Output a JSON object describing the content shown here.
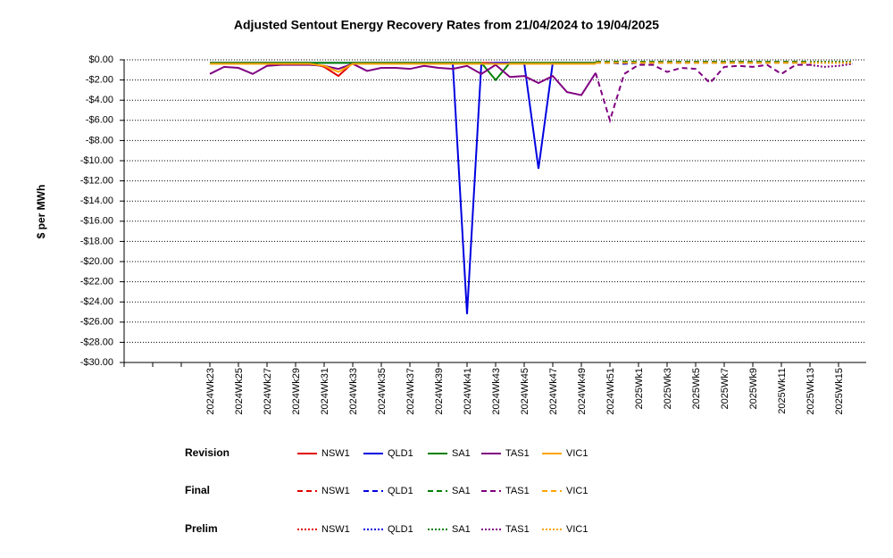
{
  "chart_data": {
    "type": "line",
    "title": "Adjusted Sentout Energy Recovery Rates from 21/04/2024 to 19/04/2025",
    "y_label": "$ per MWh",
    "categories": [
      null,
      null,
      null,
      null,
      null,
      null,
      "2024Wk23",
      null,
      "2024Wk25",
      null,
      "2024Wk27",
      null,
      "2024Wk29",
      null,
      "2024Wk31",
      null,
      "2024Wk33",
      null,
      "2024Wk35",
      null,
      "2024Wk37",
      null,
      "2024Wk39",
      null,
      "2024Wk41",
      null,
      "2024Wk43",
      null,
      "2024Wk45",
      null,
      "2024Wk47",
      null,
      "2024Wk49",
      null,
      "2024Wk51",
      null,
      "2025Wk1",
      null,
      "2025Wk3",
      null,
      "2025Wk5",
      null,
      "2025Wk7",
      null,
      "2025Wk9",
      null,
      "2025Wk11",
      null,
      "2025Wk13",
      null,
      "2025Wk15",
      null
    ],
    "ylim": [
      -30,
      0
    ],
    "yticks": [
      {
        "value": -30,
        "label": "-$30.00"
      },
      {
        "value": -28,
        "label": "-$28.00"
      },
      {
        "value": -26,
        "label": "-$26.00"
      },
      {
        "value": -24,
        "label": "-$24.00"
      },
      {
        "value": -22,
        "label": "-$22.00"
      },
      {
        "value": -20,
        "label": "-$20.00"
      },
      {
        "value": -18,
        "label": "-$18.00"
      },
      {
        "value": -16,
        "label": "-$16.00"
      },
      {
        "value": -14,
        "label": "-$14.00"
      },
      {
        "value": -12,
        "label": "-$12.00"
      },
      {
        "value": -10,
        "label": "-$10.00"
      },
      {
        "value": -8,
        "label": "-$8.00"
      },
      {
        "value": -6,
        "label": "-$6.00"
      },
      {
        "value": -4,
        "label": "-$4.00"
      },
      {
        "value": -2,
        "label": "-$2.00"
      },
      {
        "value": 0,
        "label": "$0.00"
      }
    ],
    "grid": true,
    "series_groups": [
      {
        "name": "Revision",
        "style": "solid",
        "series": [
          {
            "name": "NSW1",
            "color": "#e00000",
            "values": [
              null,
              null,
              null,
              null,
              null,
              null,
              -0.3,
              -0.3,
              -0.3,
              -0.3,
              -0.3,
              -0.3,
              -0.3,
              -0.3,
              -0.7,
              -1.6,
              -0.3,
              -0.3,
              -0.3,
              -0.3,
              -0.3,
              -0.3,
              -0.3,
              -0.3,
              -0.3,
              -0.3,
              -0.3,
              -0.3,
              -0.3,
              -0.3,
              -0.3,
              -0.3,
              -0.3,
              -0.3,
              null,
              null,
              null,
              null,
              null,
              null,
              null,
              null,
              null,
              null,
              null,
              null,
              null,
              null,
              null,
              null,
              null,
              null
            ]
          },
          {
            "name": "QLD1",
            "color": "#0000e0",
            "values": [
              null,
              null,
              null,
              null,
              null,
              null,
              -0.3,
              -0.3,
              -0.3,
              -0.3,
              -0.3,
              -0.3,
              -0.3,
              -0.3,
              -0.3,
              -0.3,
              -0.3,
              -0.3,
              -0.3,
              -0.3,
              -0.3,
              -0.3,
              -0.3,
              -0.3,
              -25.2,
              -0.4,
              -0.3,
              -0.3,
              -0.3,
              -10.8,
              -0.3,
              -0.3,
              -0.3,
              -0.3,
              null,
              null,
              null,
              null,
              null,
              null,
              null,
              null,
              null,
              null,
              null,
              null,
              null,
              null,
              null,
              null,
              null,
              null
            ]
          },
          {
            "name": "SA1",
            "color": "#008000",
            "values": [
              null,
              null,
              null,
              null,
              null,
              null,
              -0.3,
              -0.3,
              -0.3,
              -0.3,
              -0.3,
              -0.3,
              -0.3,
              -0.3,
              -0.3,
              -0.3,
              -0.3,
              -0.3,
              -0.3,
              -0.3,
              -0.3,
              -0.3,
              -0.3,
              -0.3,
              -0.3,
              -0.3,
              -2.0,
              -0.3,
              -0.3,
              -0.3,
              -0.3,
              -0.3,
              -0.3,
              -0.3,
              null,
              null,
              null,
              null,
              null,
              null,
              null,
              null,
              null,
              null,
              null,
              null,
              null,
              null,
              null,
              null,
              null,
              null
            ]
          },
          {
            "name": "TAS1",
            "color": "#800080",
            "values": [
              null,
              null,
              null,
              null,
              null,
              null,
              -1.4,
              -0.7,
              -0.8,
              -1.4,
              -0.6,
              -0.5,
              -0.5,
              -0.5,
              -0.6,
              -0.9,
              -0.4,
              -1.1,
              -0.8,
              -0.8,
              -0.9,
              -0.6,
              -0.8,
              -0.9,
              -0.6,
              -1.4,
              -0.5,
              -1.7,
              -1.6,
              -2.3,
              -1.6,
              -3.2,
              -3.5,
              -1.3,
              null,
              null,
              null,
              null,
              null,
              null,
              null,
              null,
              null,
              null,
              null,
              null,
              null,
              null,
              null,
              null,
              null,
              null
            ]
          },
          {
            "name": "VIC1",
            "color": "#ffa500",
            "values": [
              null,
              null,
              null,
              null,
              null,
              null,
              -0.4,
              -0.4,
              -0.4,
              -0.4,
              -0.4,
              -0.4,
              -0.4,
              -0.4,
              -0.6,
              -1.2,
              -0.4,
              -0.4,
              -0.4,
              -0.4,
              -0.4,
              -0.4,
              -0.4,
              -0.4,
              -0.4,
              -0.4,
              -0.4,
              -0.4,
              -0.4,
              -0.4,
              -0.4,
              -0.4,
              -0.4,
              -0.4,
              null,
              null,
              null,
              null,
              null,
              null,
              null,
              null,
              null,
              null,
              null,
              null,
              null,
              null,
              null,
              null,
              null,
              null
            ]
          }
        ]
      },
      {
        "name": "Final",
        "style": "dashed",
        "series": [
          {
            "name": "NSW1",
            "color": "#e00000",
            "values": [
              null,
              null,
              null,
              null,
              null,
              null,
              null,
              null,
              null,
              null,
              null,
              null,
              null,
              null,
              null,
              null,
              null,
              null,
              null,
              null,
              null,
              null,
              null,
              null,
              null,
              null,
              null,
              null,
              null,
              null,
              null,
              null,
              null,
              -0.2,
              -0.2,
              -0.2,
              -0.2,
              -0.2,
              -0.2,
              -0.2,
              -0.2,
              -0.2,
              -0.2,
              -0.2,
              -0.2,
              -0.2,
              -0.2,
              -0.2,
              -0.2,
              null,
              null,
              null
            ]
          },
          {
            "name": "QLD1",
            "color": "#0000e0",
            "values": [
              null,
              null,
              null,
              null,
              null,
              null,
              null,
              null,
              null,
              null,
              null,
              null,
              null,
              null,
              null,
              null,
              null,
              null,
              null,
              null,
              null,
              null,
              null,
              null,
              null,
              null,
              null,
              null,
              null,
              null,
              null,
              null,
              null,
              -0.3,
              -0.3,
              -0.4,
              -0.3,
              -0.3,
              -0.3,
              -0.3,
              -0.3,
              -0.3,
              -0.3,
              -0.3,
              -0.3,
              -0.3,
              -0.3,
              -0.3,
              -0.3,
              null,
              null,
              null
            ]
          },
          {
            "name": "SA1",
            "color": "#008000",
            "values": [
              null,
              null,
              null,
              null,
              null,
              null,
              null,
              null,
              null,
              null,
              null,
              null,
              null,
              null,
              null,
              null,
              null,
              null,
              null,
              null,
              null,
              null,
              null,
              null,
              null,
              null,
              null,
              null,
              null,
              null,
              null,
              null,
              null,
              -0.2,
              -0.2,
              -0.2,
              -0.2,
              -0.2,
              -0.2,
              -0.2,
              -0.2,
              -0.2,
              -0.2,
              -0.2,
              -0.2,
              -0.2,
              -0.2,
              -0.2,
              -0.2,
              null,
              null,
              null
            ]
          },
          {
            "name": "TAS1",
            "color": "#800080",
            "values": [
              null,
              null,
              null,
              null,
              null,
              null,
              null,
              null,
              null,
              null,
              null,
              null,
              null,
              null,
              null,
              null,
              null,
              null,
              null,
              null,
              null,
              null,
              null,
              null,
              null,
              null,
              null,
              null,
              null,
              null,
              null,
              null,
              null,
              -1.3,
              -6.0,
              -1.4,
              -0.5,
              -0.5,
              -1.2,
              -0.8,
              -0.9,
              -2.3,
              -0.7,
              -0.6,
              -0.7,
              -0.5,
              -1.4,
              -0.5,
              -0.5,
              null,
              null,
              null
            ]
          },
          {
            "name": "VIC1",
            "color": "#ffa500",
            "values": [
              null,
              null,
              null,
              null,
              null,
              null,
              null,
              null,
              null,
              null,
              null,
              null,
              null,
              null,
              null,
              null,
              null,
              null,
              null,
              null,
              null,
              null,
              null,
              null,
              null,
              null,
              null,
              null,
              null,
              null,
              null,
              null,
              null,
              -0.3,
              -0.3,
              -0.3,
              -0.3,
              -0.3,
              -0.3,
              -0.3,
              -0.3,
              -0.3,
              -0.3,
              -0.3,
              -0.3,
              -0.3,
              -0.3,
              -0.3,
              -0.3,
              null,
              null,
              null
            ]
          }
        ]
      },
      {
        "name": "Prelim",
        "style": "dotted",
        "series": [
          {
            "name": "NSW1",
            "color": "#e00000",
            "values": [
              null,
              null,
              null,
              null,
              null,
              null,
              null,
              null,
              null,
              null,
              null,
              null,
              null,
              null,
              null,
              null,
              null,
              null,
              null,
              null,
              null,
              null,
              null,
              null,
              null,
              null,
              null,
              null,
              null,
              null,
              null,
              null,
              null,
              null,
              null,
              null,
              null,
              null,
              null,
              null,
              null,
              null,
              null,
              null,
              null,
              null,
              null,
              null,
              -0.2,
              -0.2,
              -0.2,
              -0.2
            ]
          },
          {
            "name": "QLD1",
            "color": "#0000e0",
            "values": [
              null,
              null,
              null,
              null,
              null,
              null,
              null,
              null,
              null,
              null,
              null,
              null,
              null,
              null,
              null,
              null,
              null,
              null,
              null,
              null,
              null,
              null,
              null,
              null,
              null,
              null,
              null,
              null,
              null,
              null,
              null,
              null,
              null,
              null,
              null,
              null,
              null,
              null,
              null,
              null,
              null,
              null,
              null,
              null,
              null,
              null,
              null,
              null,
              -0.3,
              -0.3,
              -0.3,
              -0.3
            ]
          },
          {
            "name": "SA1",
            "color": "#008000",
            "values": [
              null,
              null,
              null,
              null,
              null,
              null,
              null,
              null,
              null,
              null,
              null,
              null,
              null,
              null,
              null,
              null,
              null,
              null,
              null,
              null,
              null,
              null,
              null,
              null,
              null,
              null,
              null,
              null,
              null,
              null,
              null,
              null,
              null,
              null,
              null,
              null,
              null,
              null,
              null,
              null,
              null,
              null,
              null,
              null,
              null,
              null,
              null,
              null,
              -0.2,
              -0.2,
              -0.2,
              -0.2
            ]
          },
          {
            "name": "TAS1",
            "color": "#800080",
            "values": [
              null,
              null,
              null,
              null,
              null,
              null,
              null,
              null,
              null,
              null,
              null,
              null,
              null,
              null,
              null,
              null,
              null,
              null,
              null,
              null,
              null,
              null,
              null,
              null,
              null,
              null,
              null,
              null,
              null,
              null,
              null,
              null,
              null,
              null,
              null,
              null,
              null,
              null,
              null,
              null,
              null,
              null,
              null,
              null,
              null,
              null,
              null,
              null,
              -0.5,
              -0.7,
              -0.6,
              -0.4
            ]
          },
          {
            "name": "VIC1",
            "color": "#ffa500",
            "values": [
              null,
              null,
              null,
              null,
              null,
              null,
              null,
              null,
              null,
              null,
              null,
              null,
              null,
              null,
              null,
              null,
              null,
              null,
              null,
              null,
              null,
              null,
              null,
              null,
              null,
              null,
              null,
              null,
              null,
              null,
              null,
              null,
              null,
              null,
              null,
              null,
              null,
              null,
              null,
              null,
              null,
              null,
              null,
              null,
              null,
              null,
              null,
              null,
              -0.3,
              -0.3,
              -0.3,
              -0.3
            ]
          }
        ]
      }
    ]
  }
}
